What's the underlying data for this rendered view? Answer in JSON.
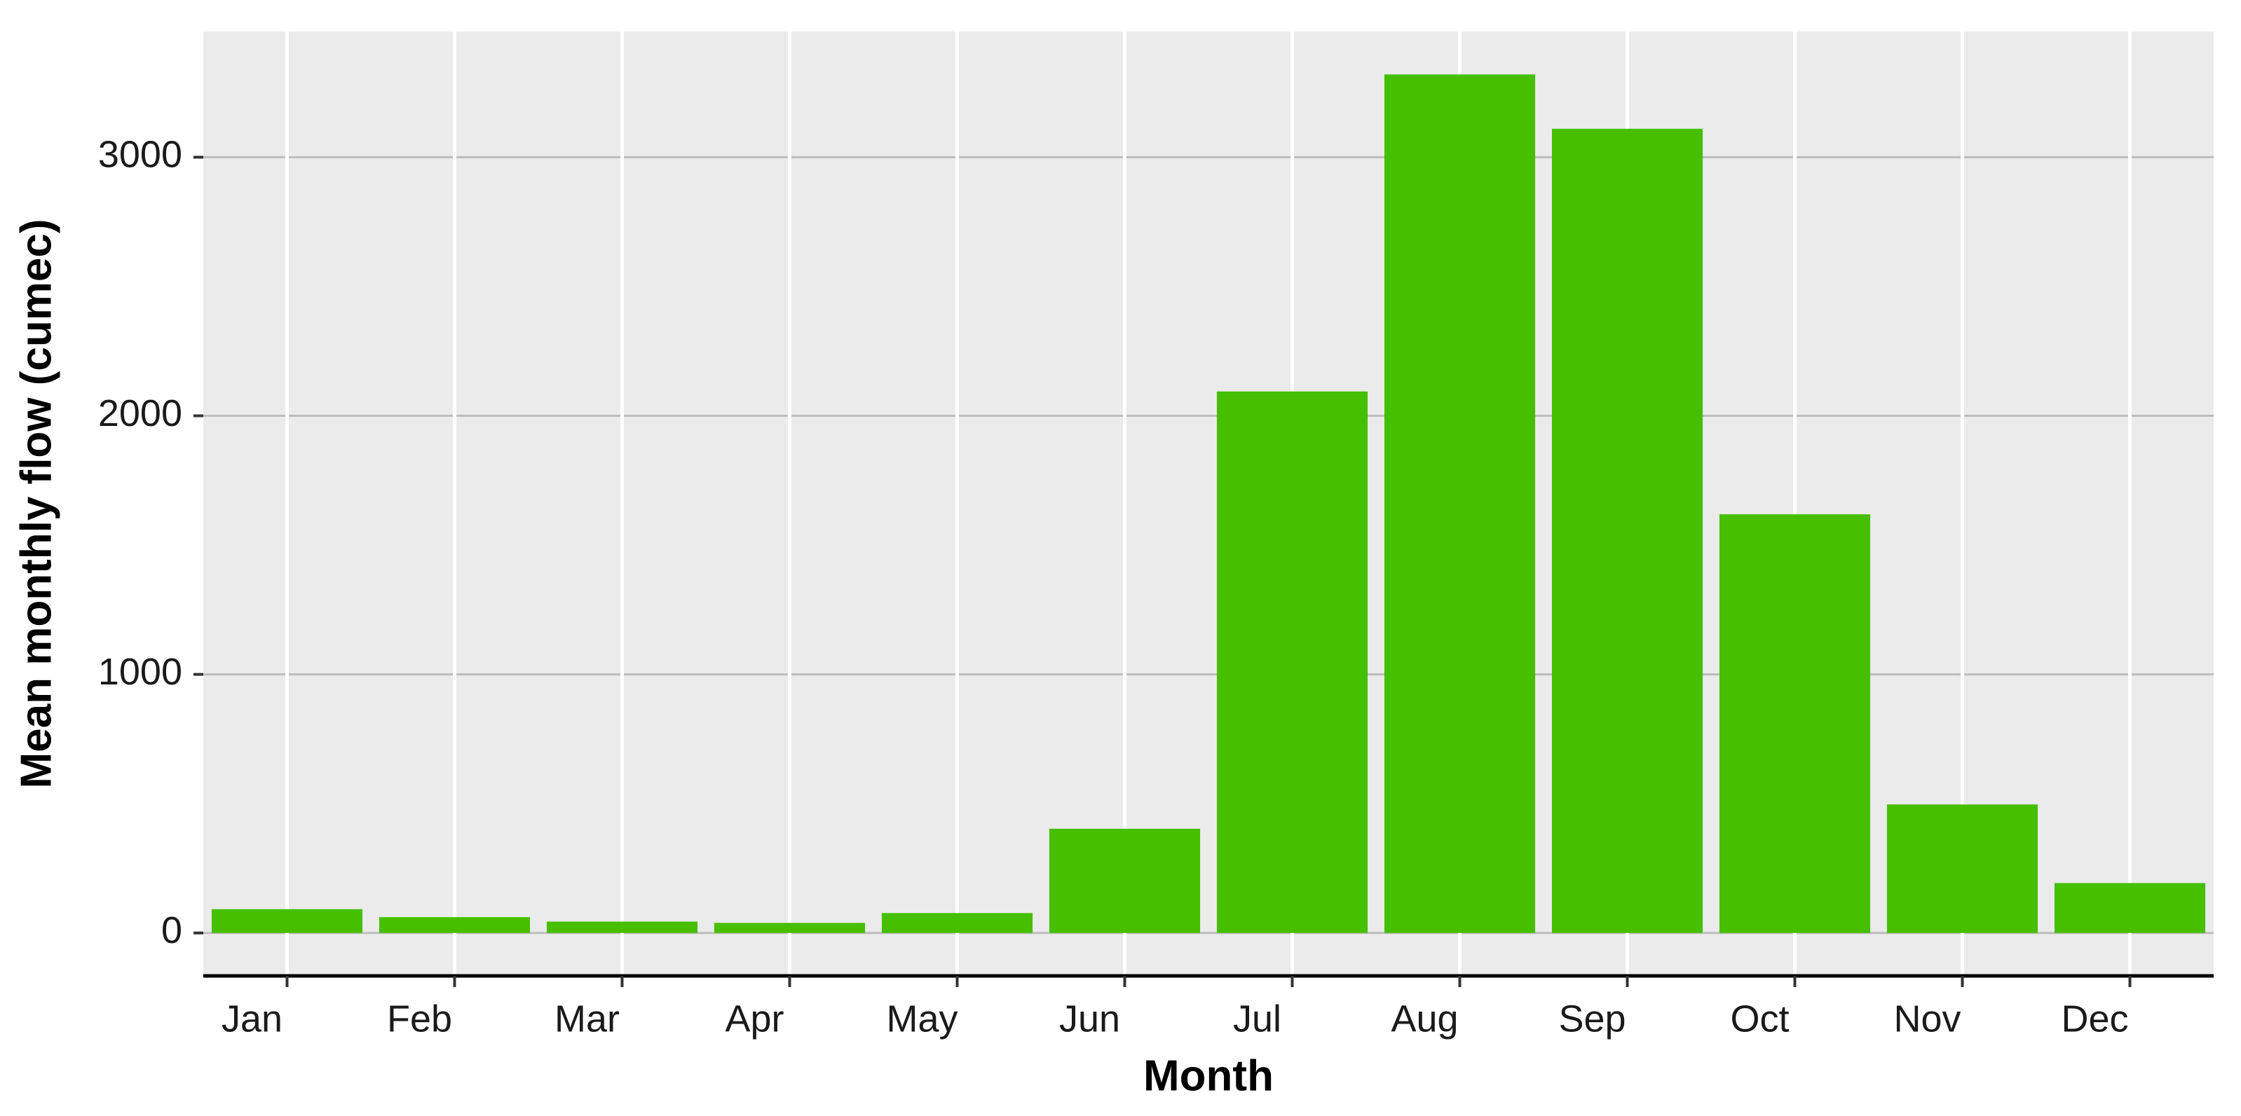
{
  "chart_data": {
    "type": "bar",
    "x_label": "Month",
    "y_label": "Mean monthly flow (cumec)",
    "categories": [
      "Jan",
      "Feb",
      "Mar",
      "Apr",
      "May",
      "Jun",
      "Jul",
      "Aug",
      "Sep",
      "Oct",
      "Nov",
      "Dec"
    ],
    "values": [
      92,
      61,
      44,
      39,
      77,
      403,
      2094,
      3320,
      3110,
      1619,
      497,
      193
    ],
    "color": "#45bf00",
    "ylim": [
      -166,
      3486
    ],
    "yticks": [
      0,
      1000,
      2000,
      3000
    ],
    "grid": true
  }
}
